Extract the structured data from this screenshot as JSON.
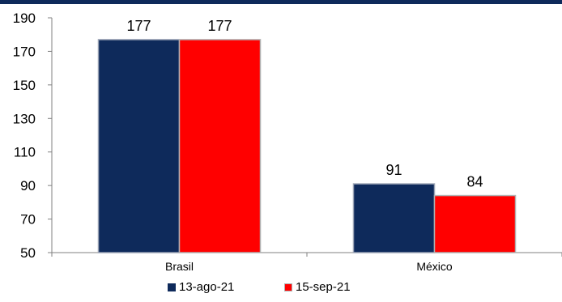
{
  "chart_data": {
    "type": "bar",
    "categories": [
      "Brasil",
      "México"
    ],
    "series": [
      {
        "name": "13-ago-21",
        "values": [
          177,
          91
        ],
        "color": "#0e2a5b"
      },
      {
        "name": "15-sep-21",
        "values": [
          177,
          84
        ],
        "color": "#ff0000"
      }
    ],
    "ylim": [
      50,
      190
    ],
    "yticks": [
      50,
      70,
      90,
      110,
      130,
      150,
      170,
      190
    ],
    "data_labels": [
      [
        "177",
        "91"
      ],
      [
        "177",
        "84"
      ]
    ],
    "legend_position": "bottom",
    "grid": false
  }
}
